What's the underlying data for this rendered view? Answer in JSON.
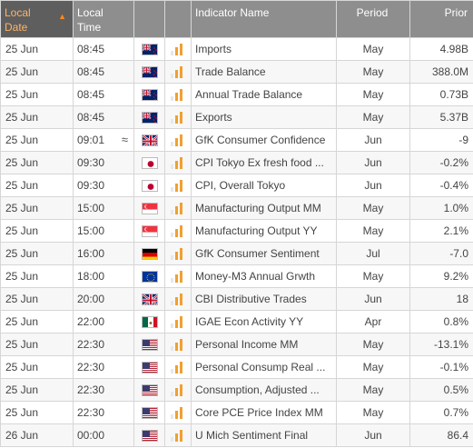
{
  "header": {
    "local_date": "Local\nDate",
    "local_time": "Local\nTime",
    "indicator_name": "Indicator Name",
    "period": "Period",
    "prior": "Prior"
  },
  "rows": [
    {
      "date": "25 Jun",
      "time": "08:45",
      "approx": "",
      "country": "NZ",
      "flag": "nz-flag-icon",
      "importance": 3,
      "name": "Imports",
      "period": "May",
      "prior": "4.98B"
    },
    {
      "date": "25 Jun",
      "time": "08:45",
      "approx": "",
      "country": "NZ",
      "flag": "nz-flag-icon",
      "importance": 3,
      "name": "Trade Balance",
      "period": "May",
      "prior": "388.0M"
    },
    {
      "date": "25 Jun",
      "time": "08:45",
      "approx": "",
      "country": "NZ",
      "flag": "nz-flag-icon",
      "importance": 3,
      "name": "Annual Trade Balance",
      "period": "May",
      "prior": "0.73B"
    },
    {
      "date": "25 Jun",
      "time": "08:45",
      "approx": "",
      "country": "NZ",
      "flag": "nz-flag-icon",
      "importance": 3,
      "name": "Exports",
      "period": "May",
      "prior": "5.37B"
    },
    {
      "date": "25 Jun",
      "time": "09:01",
      "approx": "≈",
      "country": "GB",
      "flag": "uk-flag-icon",
      "importance": 3,
      "name": "GfK Consumer Confidence",
      "period": "Jun",
      "prior": "-9"
    },
    {
      "date": "25 Jun",
      "time": "09:30",
      "approx": "",
      "country": "JP",
      "flag": "japan-flag-icon",
      "importance": 3,
      "name": "CPI Tokyo Ex fresh food ...",
      "period": "Jun",
      "prior": "-0.2%"
    },
    {
      "date": "25 Jun",
      "time": "09:30",
      "approx": "",
      "country": "JP",
      "flag": "japan-flag-icon",
      "importance": 3,
      "name": "CPI, Overall Tokyo",
      "period": "Jun",
      "prior": "-0.4%"
    },
    {
      "date": "25 Jun",
      "time": "15:00",
      "approx": "",
      "country": "SG",
      "flag": "singapore-flag-icon",
      "importance": 3,
      "name": "Manufacturing Output MM",
      "period": "May",
      "prior": "1.0%"
    },
    {
      "date": "25 Jun",
      "time": "15:00",
      "approx": "",
      "country": "SG",
      "flag": "singapore-flag-icon",
      "importance": 3,
      "name": "Manufacturing Output YY",
      "period": "May",
      "prior": "2.1%"
    },
    {
      "date": "25 Jun",
      "time": "16:00",
      "approx": "",
      "country": "DE",
      "flag": "germany-flag-icon",
      "importance": 3,
      "name": "GfK Consumer Sentiment",
      "period": "Jul",
      "prior": "-7.0"
    },
    {
      "date": "25 Jun",
      "time": "18:00",
      "approx": "",
      "country": "EU",
      "flag": "eu-flag-icon",
      "importance": 3,
      "name": "Money-M3 Annual Grwth",
      "period": "May",
      "prior": "9.2%"
    },
    {
      "date": "25 Jun",
      "time": "20:00",
      "approx": "",
      "country": "GB",
      "flag": "uk-flag-icon",
      "importance": 3,
      "name": "CBI Distributive Trades",
      "period": "Jun",
      "prior": "18"
    },
    {
      "date": "25 Jun",
      "time": "22:00",
      "approx": "",
      "country": "MX",
      "flag": "mexico-flag-icon",
      "importance": 3,
      "name": "IGAE Econ Activity YY",
      "period": "Apr",
      "prior": "0.8%"
    },
    {
      "date": "25 Jun",
      "time": "22:30",
      "approx": "",
      "country": "US",
      "flag": "us-flag-icon",
      "importance": 3,
      "name": "Personal Income MM",
      "period": "May",
      "prior": "-13.1%"
    },
    {
      "date": "25 Jun",
      "time": "22:30",
      "approx": "",
      "country": "US",
      "flag": "us-flag-icon",
      "importance": 3,
      "name": "Personal Consump Real ...",
      "period": "May",
      "prior": "-0.1%"
    },
    {
      "date": "25 Jun",
      "time": "22:30",
      "approx": "",
      "country": "US",
      "flag": "us-flag-icon",
      "importance": 3,
      "name": "Consumption, Adjusted ...",
      "period": "May",
      "prior": "0.5%"
    },
    {
      "date": "25 Jun",
      "time": "22:30",
      "approx": "",
      "country": "US",
      "flag": "us-flag-icon",
      "importance": 3,
      "name": "Core PCE Price Index MM",
      "period": "May",
      "prior": "0.7%"
    },
    {
      "date": "26 Jun",
      "time": "00:00",
      "approx": "",
      "country": "US",
      "flag": "us-flag-icon",
      "importance": 3,
      "name": "U Mich Sentiment Final",
      "period": "Jun",
      "prior": "86.4"
    }
  ],
  "colors": {
    "header_bg": "#8e8e8e",
    "sorted_header_bg": "#5e5e5e",
    "sorted_header_text": "#ffb366",
    "importance_bar": "#f0a030"
  }
}
